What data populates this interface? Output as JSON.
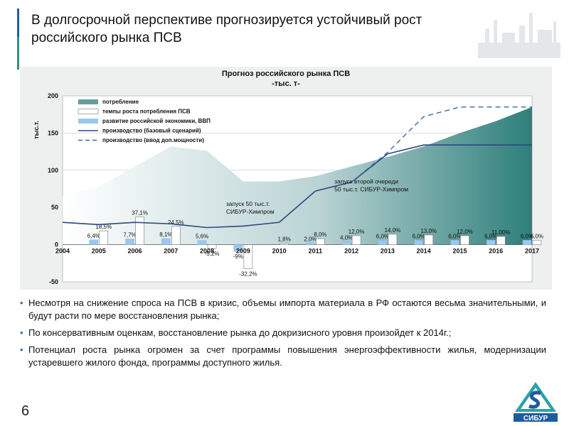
{
  "slide": {
    "title_line1": "В долгосрочной перспективе прогнозируется устойчивый рост",
    "title_line2": "российского рынка ПСВ",
    "page_number": "6",
    "logo_text": "СИБУР"
  },
  "bullets": [
    "Несмотря на снижение спроса на ПСВ в кризис, объемы импорта материала в РФ остаются весьма значительными, и будут расти по мере восстановления рынка;",
    "По консервативным оценкам, восстановление рынка до докризисного уровня произойдет к 2014г.;",
    "Потенциал роста рынка огромен за счет программы повышения энергоэффективности жилья, модернизации устаревшего жилого фонда, программы доступного жилья."
  ],
  "colors": {
    "accent": "#2f8f8a",
    "area_dark": "#2e7f7a",
    "area_light": "#ffffff",
    "bar_blue": "#9cc8ee",
    "line_navy": "#2b4a7c",
    "bullet": "#2a6fb0"
  },
  "chart_data": {
    "type": "area",
    "title_line1": "Прогноз российского рынка ПСВ",
    "title_line2": "-тыс. т-",
    "ylabel": "тыс.т.",
    "ylim": [
      -50,
      200
    ],
    "yticks": [
      -50,
      0,
      50,
      100,
      150,
      200
    ],
    "grid": "horizontal",
    "legend_position": "top-left",
    "categories": [
      "2004",
      "2005",
      "2006",
      "2007",
      "2008",
      "2009",
      "2010",
      "2011",
      "2012",
      "2013",
      "2014",
      "2015",
      "2016",
      "2017"
    ],
    "series": [
      {
        "name": "потребление",
        "kind": "area",
        "values": [
          65,
          78,
          105,
          132,
          126,
          85,
          85,
          92,
          105,
          118,
          132,
          150,
          166,
          185
        ]
      },
      {
        "name": "темпы роста потребления ПСВ",
        "kind": "bar",
        "values": [
          null,
          18.5,
          37.1,
          24.5,
          -5.2,
          -32.2,
          1.8,
          8.0,
          12.0,
          14.0,
          13.0,
          12.0,
          11.0,
          6.0
        ],
        "labels": [
          "",
          "18,5%",
          "37,1%",
          "24,5%",
          "-5,2%",
          "-32,2%",
          "1,8%",
          "8,0%",
          "12,0%",
          "14,0%",
          "13,0%",
          "12,0%",
          "11,00%",
          "6,0%"
        ]
      },
      {
        "name": "развитие российской экономики, ВВП",
        "kind": "bar",
        "values": [
          null,
          6.4,
          7.7,
          8.1,
          5.6,
          -9.0,
          null,
          2.0,
          4.0,
          6.0,
          6.0,
          6.0,
          6.0,
          6.0
        ],
        "labels": [
          "",
          "6,4%",
          "7,7%",
          "8,1%",
          "5,6%",
          "-9%",
          "",
          "2,0%",
          "4,0%",
          "6,0%",
          "6,0%",
          "6,0%",
          "6,0%",
          "6,0%"
        ]
      },
      {
        "name": "производство (базовый сценарий)",
        "kind": "line",
        "values": [
          30,
          27,
          30,
          28,
          23,
          25,
          30,
          72,
          84,
          122,
          134,
          134,
          134,
          134
        ]
      },
      {
        "name": "производство (ввод доп.мощности)",
        "kind": "dashed",
        "values": [
          null,
          null,
          null,
          null,
          null,
          null,
          null,
          null,
          84,
          124,
          172,
          185,
          185,
          185
        ]
      }
    ],
    "annotations": [
      {
        "text_line1": "запуск 50 тыс.т.",
        "text_line2": "СИБУР-Химпром",
        "x": "2009",
        "y": 52
      },
      {
        "text_line1": "запуск второй очереди",
        "text_line2": "50 тыс.т. СИБУР-Химпром",
        "x": "2012",
        "y": 82
      }
    ]
  }
}
